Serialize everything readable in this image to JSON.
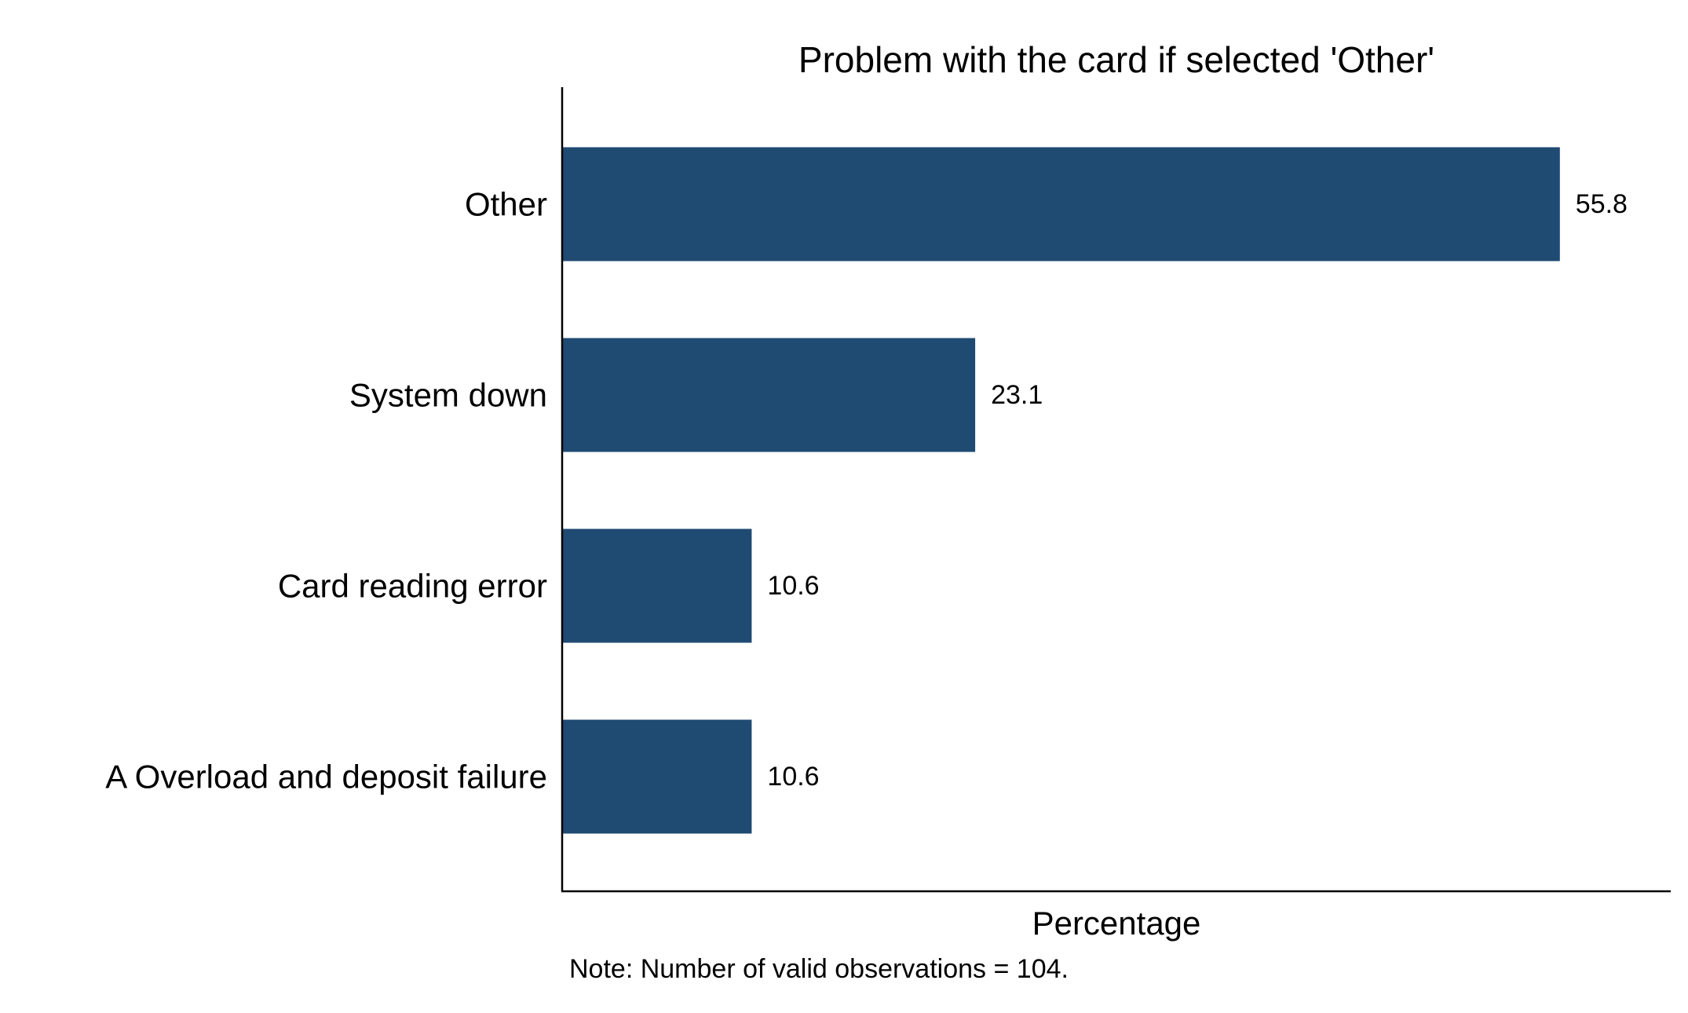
{
  "chart_data": {
    "type": "bar",
    "orientation": "horizontal",
    "title": "Problem with the card if selected 'Other'",
    "xlabel": "Percentage",
    "ylabel": "",
    "categories": [
      "Other",
      "System down",
      "Card reading error",
      "A Overload and deposit failure"
    ],
    "values": [
      55.8,
      23.1,
      10.6,
      10.6
    ],
    "value_labels": [
      "55.8",
      "23.1",
      "10.6",
      "10.6"
    ],
    "xlim": [
      0,
      62
    ],
    "grid": false,
    "legend": "none",
    "bar_color": "#1f4a72",
    "note": "Note: Number of valid observations = 104."
  }
}
